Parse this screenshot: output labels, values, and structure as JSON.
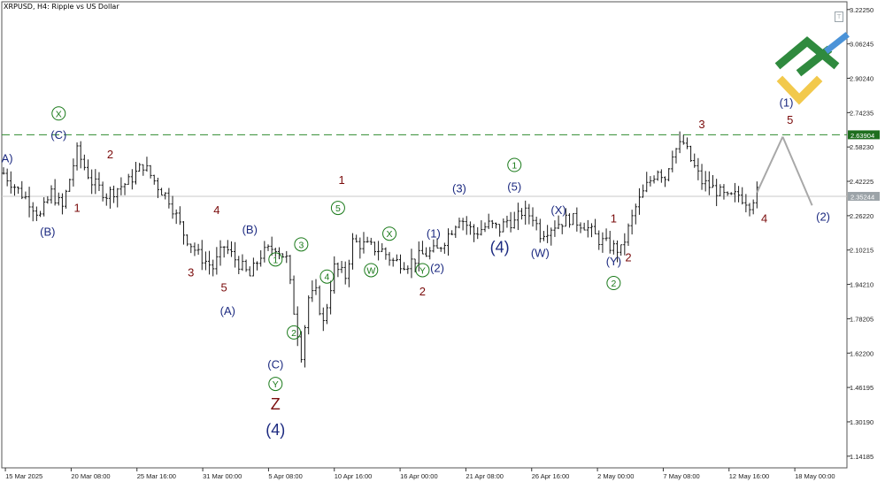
{
  "header": {
    "title": "XRPUSD, H4:  Ripple vs US Dollar"
  },
  "colors": {
    "bar": "#1a1a1a",
    "grid": "#c8c8c8",
    "wave_red": "#7a0b0b",
    "wave_blue": "#1c2a80",
    "wave_green": "#1a7a1a",
    "dashed_level": "#2e8b2e",
    "projection": "#a8a8a8",
    "price_badge_green": "#1e6e1e",
    "price_badge_gray": "#9ca3a8"
  },
  "chart_data": {
    "type": "ohlc",
    "symbol": "XRPUSD",
    "timeframe": "H4",
    "ylim": [
      1.0875,
      3.2588
    ],
    "y_ticks": [
      "3.22250",
      "3.06245",
      "2.90240",
      "2.74235",
      "2.58230",
      "2.42225",
      "2.26220",
      "2.10215",
      "1.94210",
      "1.78205",
      "1.62200",
      "1.46195",
      "1.30190",
      "1.14185"
    ],
    "x_ticks": [
      "15 Mar 2025",
      "20 Mar 08:00",
      "25 Mar 16:00",
      "31 Mar 00:00",
      "5 Apr 08:00",
      "10 Apr 16:00",
      "16 Apr 00:00",
      "21 Apr 08:00",
      "26 Apr 16:00",
      "2 May 00:00",
      "7 May 08:00",
      "12 May 16:00",
      "18 May 00:00"
    ],
    "horizontal_levels": [
      {
        "price": 2.63904,
        "label": "2.63904",
        "style": "dashed",
        "color": "green"
      },
      {
        "price": 2.35244,
        "label": "2.35244",
        "style": "solid",
        "color": "gray"
      }
    ],
    "close_path": [
      [
        0,
        2.46
      ],
      [
        4,
        2.38
      ],
      [
        7,
        2.33
      ],
      [
        10,
        2.26
      ],
      [
        13,
        2.37
      ],
      [
        16,
        2.3
      ],
      [
        19,
        2.5
      ],
      [
        20,
        2.56
      ],
      [
        24,
        2.42
      ],
      [
        28,
        2.36
      ],
      [
        34,
        2.42
      ],
      [
        38,
        2.5
      ],
      [
        42,
        2.4
      ],
      [
        45,
        2.34
      ],
      [
        49,
        2.18
      ],
      [
        53,
        2.08
      ],
      [
        57,
        2.02
      ],
      [
        60,
        2.12
      ],
      [
        64,
        2.04
      ],
      [
        67,
        1.98
      ],
      [
        70,
        2.08
      ],
      [
        74,
        2.12
      ],
      [
        77,
        2.06
      ],
      [
        79,
        1.82
      ],
      [
        81,
        1.62
      ],
      [
        83,
        1.88
      ],
      [
        85,
        1.9
      ],
      [
        87,
        1.76
      ],
      [
        90,
        2.02
      ],
      [
        93,
        1.98
      ],
      [
        95,
        2.14
      ],
      [
        99,
        2.12
      ],
      [
        103,
        2.1
      ],
      [
        106,
        2.05
      ],
      [
        110,
        2.04
      ],
      [
        114,
        2.08
      ],
      [
        118,
        2.1
      ],
      [
        122,
        2.2
      ],
      [
        124,
        2.26
      ],
      [
        128,
        2.18
      ],
      [
        132,
        2.22
      ],
      [
        135,
        2.2
      ],
      [
        137,
        2.24
      ],
      [
        139,
        2.23
      ],
      [
        141,
        2.28
      ],
      [
        144,
        2.26
      ],
      [
        146,
        2.18
      ],
      [
        150,
        2.22
      ],
      [
        154,
        2.25
      ],
      [
        158,
        2.22
      ],
      [
        162,
        2.15
      ],
      [
        165,
        2.12
      ],
      [
        168,
        2.1
      ],
      [
        172,
        2.3
      ],
      [
        175,
        2.4
      ],
      [
        178,
        2.48
      ],
      [
        180,
        2.44
      ],
      [
        182,
        2.56
      ],
      [
        185,
        2.6
      ],
      [
        187,
        2.52
      ],
      [
        190,
        2.42
      ],
      [
        194,
        2.38
      ],
      [
        197,
        2.34
      ],
      [
        200,
        2.36
      ],
      [
        203,
        2.32
      ],
      [
        205,
        2.37
      ]
    ],
    "projection_path": [
      [
        205,
        2.37
      ],
      [
        212,
        2.63
      ],
      [
        220,
        2.31
      ]
    ],
    "wave_labels": [
      {
        "text": "A)",
        "color": "blue",
        "x": 1,
        "price": 2.51
      },
      {
        "text": "X",
        "color": "green",
        "circled": true,
        "x": 15,
        "price": 2.72
      },
      {
        "text": "(C)",
        "color": "blue",
        "x": 15,
        "price": 2.62
      },
      {
        "text": "1",
        "color": "red",
        "x": 20,
        "price": 2.28
      },
      {
        "text": "(B)",
        "color": "blue",
        "x": 12,
        "price": 2.17
      },
      {
        "text": "2",
        "color": "red",
        "x": 29,
        "price": 2.53
      },
      {
        "text": "3",
        "color": "red",
        "x": 51,
        "price": 1.98
      },
      {
        "text": "4",
        "color": "red",
        "x": 58,
        "price": 2.27
      },
      {
        "text": "5",
        "color": "red",
        "x": 60,
        "price": 1.91
      },
      {
        "text": "(A)",
        "color": "blue",
        "x": 61,
        "price": 1.8
      },
      {
        "text": "(B)",
        "color": "blue",
        "x": 67,
        "price": 2.18
      },
      {
        "text": "1",
        "color": "green",
        "circled": true,
        "x": 74,
        "price": 2.04
      },
      {
        "text": "2",
        "color": "green",
        "circled": true,
        "x": 79,
        "price": 1.7
      },
      {
        "text": "(C)",
        "color": "blue",
        "x": 74,
        "price": 1.55
      },
      {
        "text": "Y",
        "color": "green",
        "circled": true,
        "x": 74,
        "price": 1.46
      },
      {
        "text": "Z",
        "color": "red",
        "x": 74,
        "price": 1.36
      },
      {
        "text": "(4)",
        "color": "blue",
        "x": 74,
        "price": 1.24
      },
      {
        "text": "3",
        "color": "green",
        "circled": true,
        "x": 81,
        "price": 2.11
      },
      {
        "text": "4",
        "color": "green",
        "circled": true,
        "x": 88,
        "price": 1.96
      },
      {
        "text": "5",
        "color": "green",
        "circled": true,
        "x": 91,
        "price": 2.28
      },
      {
        "text": "1",
        "color": "red",
        "x": 92,
        "price": 2.41
      },
      {
        "text": "W",
        "color": "green",
        "circled": true,
        "x": 100,
        "price": 1.99
      },
      {
        "text": "X",
        "color": "green",
        "circled": true,
        "x": 105,
        "price": 2.16
      },
      {
        "text": "Y",
        "color": "green",
        "circled": true,
        "x": 114,
        "price": 1.99
      },
      {
        "text": "(2)",
        "color": "blue",
        "x": 118,
        "price": 2.0
      },
      {
        "text": "2",
        "color": "red",
        "x": 114,
        "price": 1.89
      },
      {
        "text": "(1)",
        "color": "blue",
        "x": 117,
        "price": 2.16
      },
      {
        "text": "(3)",
        "color": "blue",
        "x": 124,
        "price": 2.37
      },
      {
        "text": "(4)",
        "color": "blue",
        "x": 135,
        "price": 2.09
      },
      {
        "text": "(5)",
        "color": "blue",
        "x": 139,
        "price": 2.38
      },
      {
        "text": "1",
        "color": "green",
        "circled": true,
        "x": 139,
        "price": 2.48
      },
      {
        "text": "(W)",
        "color": "blue",
        "x": 146,
        "price": 2.07
      },
      {
        "text": "(X)",
        "color": "blue",
        "x": 151,
        "price": 2.27
      },
      {
        "text": "1",
        "color": "red",
        "x": 166,
        "price": 2.23
      },
      {
        "text": "(Y)",
        "color": "blue",
        "x": 166,
        "price": 2.03
      },
      {
        "text": "2",
        "color": "red",
        "x": 170,
        "price": 2.05
      },
      {
        "text": "2",
        "color": "green",
        "circled": true,
        "x": 166,
        "price": 1.93
      },
      {
        "text": "3",
        "color": "red",
        "x": 190,
        "price": 2.67
      },
      {
        "text": "4",
        "color": "red",
        "x": 207,
        "price": 2.23
      },
      {
        "text": "(1)",
        "color": "blue",
        "x": 213,
        "price": 2.77
      },
      {
        "text": "5",
        "color": "red",
        "x": 214,
        "price": 2.69
      },
      {
        "text": "(2)",
        "color": "blue",
        "x": 223,
        "price": 2.24
      }
    ]
  }
}
